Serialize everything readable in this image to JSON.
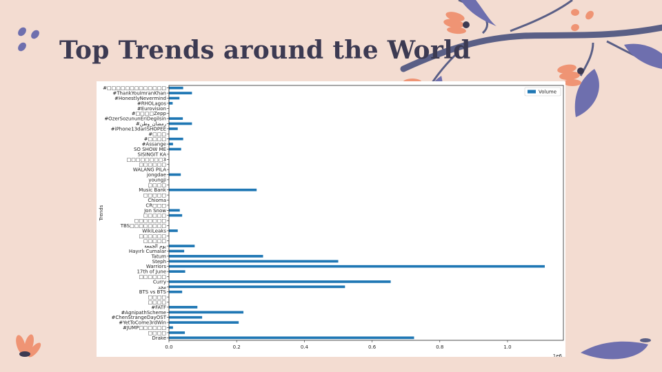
{
  "slide": {
    "title": "Top Trends around the World"
  },
  "colors": {
    "background": "#f3dcd1",
    "title": "#3c3a52",
    "bar": "#1f77b4",
    "leaf": "#6e6fae",
    "flower": "#ef9474",
    "branch": "#5a5f86"
  },
  "chart_data": {
    "type": "bar",
    "orientation": "horizontal",
    "title": "",
    "xlabel": "",
    "ylabel": "Trends",
    "x_scale_label": "1e6",
    "xlim": [
      0,
      1.165
    ],
    "x_ticks": [
      0.0,
      0.2,
      0.4,
      0.6,
      0.8,
      1.0
    ],
    "x_tick_labels": [
      "0.0",
      "0.2",
      "0.4",
      "0.6",
      "0.8",
      "1.0"
    ],
    "legend": {
      "position": "top-right",
      "entries": [
        "Volume"
      ]
    },
    "grid": false,
    "categories": [
      "Drake",
      "□□□□",
      "#JUMP□□□□□□",
      "#YetToCome3rdWin",
      "#ChenStrangeDayOST",
      "#AgnipathScheme",
      "#FATF",
      "□□□□",
      "□□□□",
      "BTS vs BTS",
      "مجد",
      "Curry",
      "□□□□□□",
      "17th of June",
      "Warriors",
      "Steph",
      "Tatum",
      "Hayırlı Cumalar",
      "يوم الجمعة",
      "□□□□□",
      "□□□□□□",
      "WikiLeaks",
      "TBS□□□□□□□□",
      "□□□□□□□",
      "□□□□□",
      "Jon Snow",
      "CR□□□",
      "Chioma",
      "□□□□□",
      "Music Bank",
      "□□□□",
      "youngji",
      "jongdae",
      "WALANG PILA",
      "□□□□□□",
      "□□□□□□□□3",
      "SISINGIT KA",
      "SO SHOW ME",
      "#Assange",
      "#□□□□",
      "#□□□",
      "#iPhone13dariSHOPEE",
      "#رمضان_وطن",
      "#OzerSozununEriDegilsin",
      "#□□□□Zepp",
      "#Eurovision",
      "#RHOLagos",
      "#HonestlyNevermind",
      "#ThankYouImranKhan",
      "#□□□□□□□□□□□□□"
    ],
    "series": [
      {
        "name": "Volume",
        "values": [
          0.724,
          0.047,
          0.012,
          0.206,
          0.098,
          0.22,
          0.084,
          0.0,
          0.0,
          0.039,
          0.52,
          0.655,
          0.0,
          0.048,
          1.11,
          0.5,
          0.278,
          0.045,
          0.076,
          0.0,
          0.0,
          0.026,
          0.0,
          0.0,
          0.039,
          0.032,
          0.0,
          0.0,
          0.0,
          0.259,
          0.0,
          0.0,
          0.035,
          0.0,
          0.0,
          0.0,
          0.0,
          0.036,
          0.012,
          0.042,
          0.0,
          0.026,
          0.068,
          0.041,
          0.0,
          0.0,
          0.011,
          0.031,
          0.068,
          0.042
        ]
      }
    ]
  }
}
